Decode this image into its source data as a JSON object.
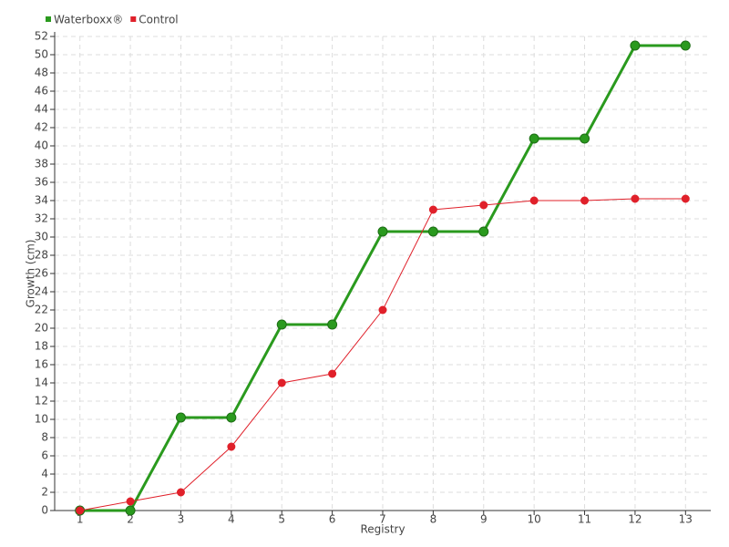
{
  "chart_data": {
    "type": "line",
    "x_label": "Registry",
    "y_label": "Growth (cm)",
    "categories": [
      "1",
      "2",
      "3",
      "4",
      "5",
      "6",
      "7",
      "8",
      "9",
      "10",
      "11",
      "12",
      "13"
    ],
    "series": [
      {
        "name": "Waterboxx®",
        "color": "#2a9a1e",
        "values": [
          0,
          0,
          10.2,
          10.2,
          20.4,
          20.4,
          30.6,
          30.6,
          30.6,
          40.8,
          40.8,
          51,
          51
        ]
      },
      {
        "name": "Control",
        "color": "#e0202a",
        "values": [
          0,
          1,
          2,
          7,
          14,
          15,
          22,
          33,
          33.5,
          34,
          34,
          34.2,
          34.2
        ]
      }
    ],
    "ylim": [
      0,
      52
    ],
    "yticks": [
      0,
      2,
      4,
      6,
      8,
      10,
      12,
      14,
      16,
      18,
      20,
      22,
      24,
      26,
      28,
      30,
      32,
      34,
      36,
      38,
      40,
      42,
      44,
      46,
      48,
      50,
      52
    ],
    "grid": true,
    "legend": "top-left"
  }
}
